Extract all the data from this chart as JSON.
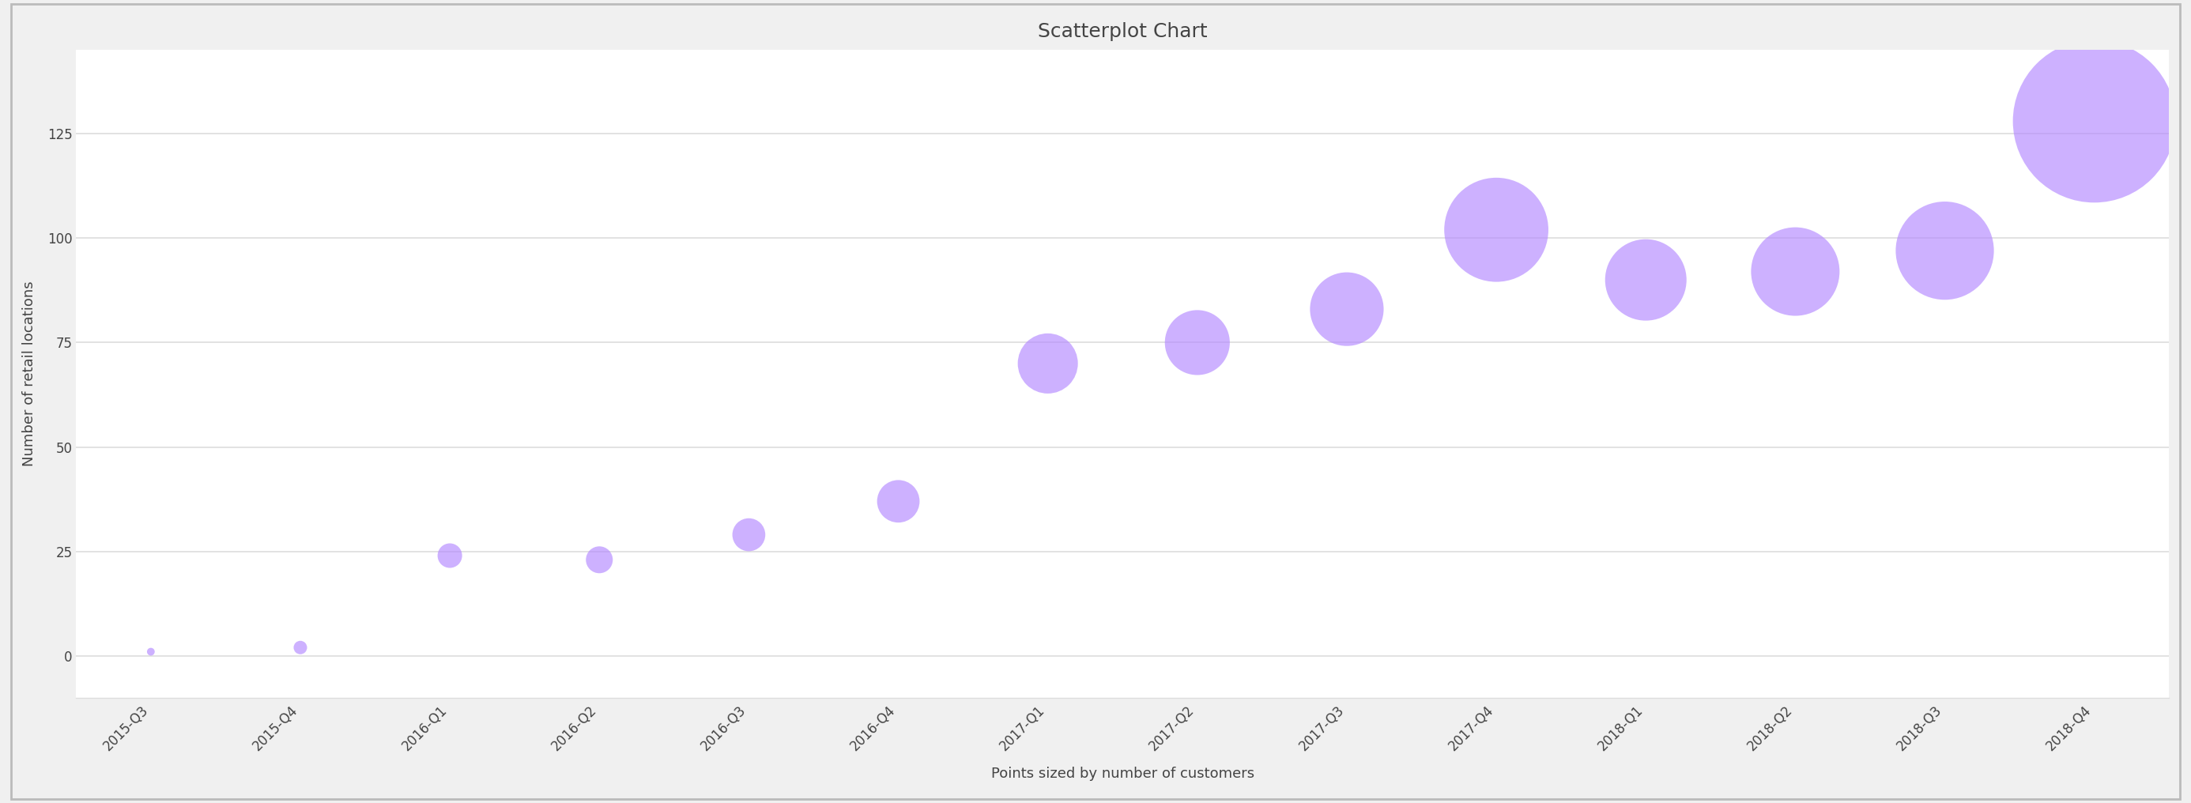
{
  "title": "Scatterplot Chart",
  "xlabel": "Points sized by number of customers",
  "ylabel": "Number of retail locations",
  "background_color": "#f0f0f0",
  "plot_background_color": "#ffffff",
  "border_color": "#aaaaaa",
  "scatter_color": "#b388ff",
  "scatter_alpha": 0.65,
  "grid_color": "#dddddd",
  "quarters": [
    "2015-Q3",
    "2015-Q4",
    "2016-Q1",
    "2016-Q2",
    "2016-Q3",
    "2016-Q4",
    "2017-Q1",
    "2017-Q2",
    "2017-Q3",
    "2017-Q4",
    "2018-Q1",
    "2018-Q2",
    "2018-Q3",
    "2018-Q4"
  ],
  "y_values": [
    1,
    2,
    24,
    23,
    29,
    37,
    70,
    75,
    83,
    102,
    90,
    92,
    97,
    128
  ],
  "sizes": [
    50,
    150,
    500,
    600,
    900,
    1500,
    3000,
    3500,
    4500,
    9000,
    5500,
    6500,
    8000,
    22000
  ],
  "ylim": [
    -10,
    145
  ],
  "yticks": [
    0,
    25,
    50,
    75,
    100,
    125
  ],
  "title_fontsize": 18,
  "label_fontsize": 13,
  "tick_fontsize": 12,
  "text_color": "#444444"
}
